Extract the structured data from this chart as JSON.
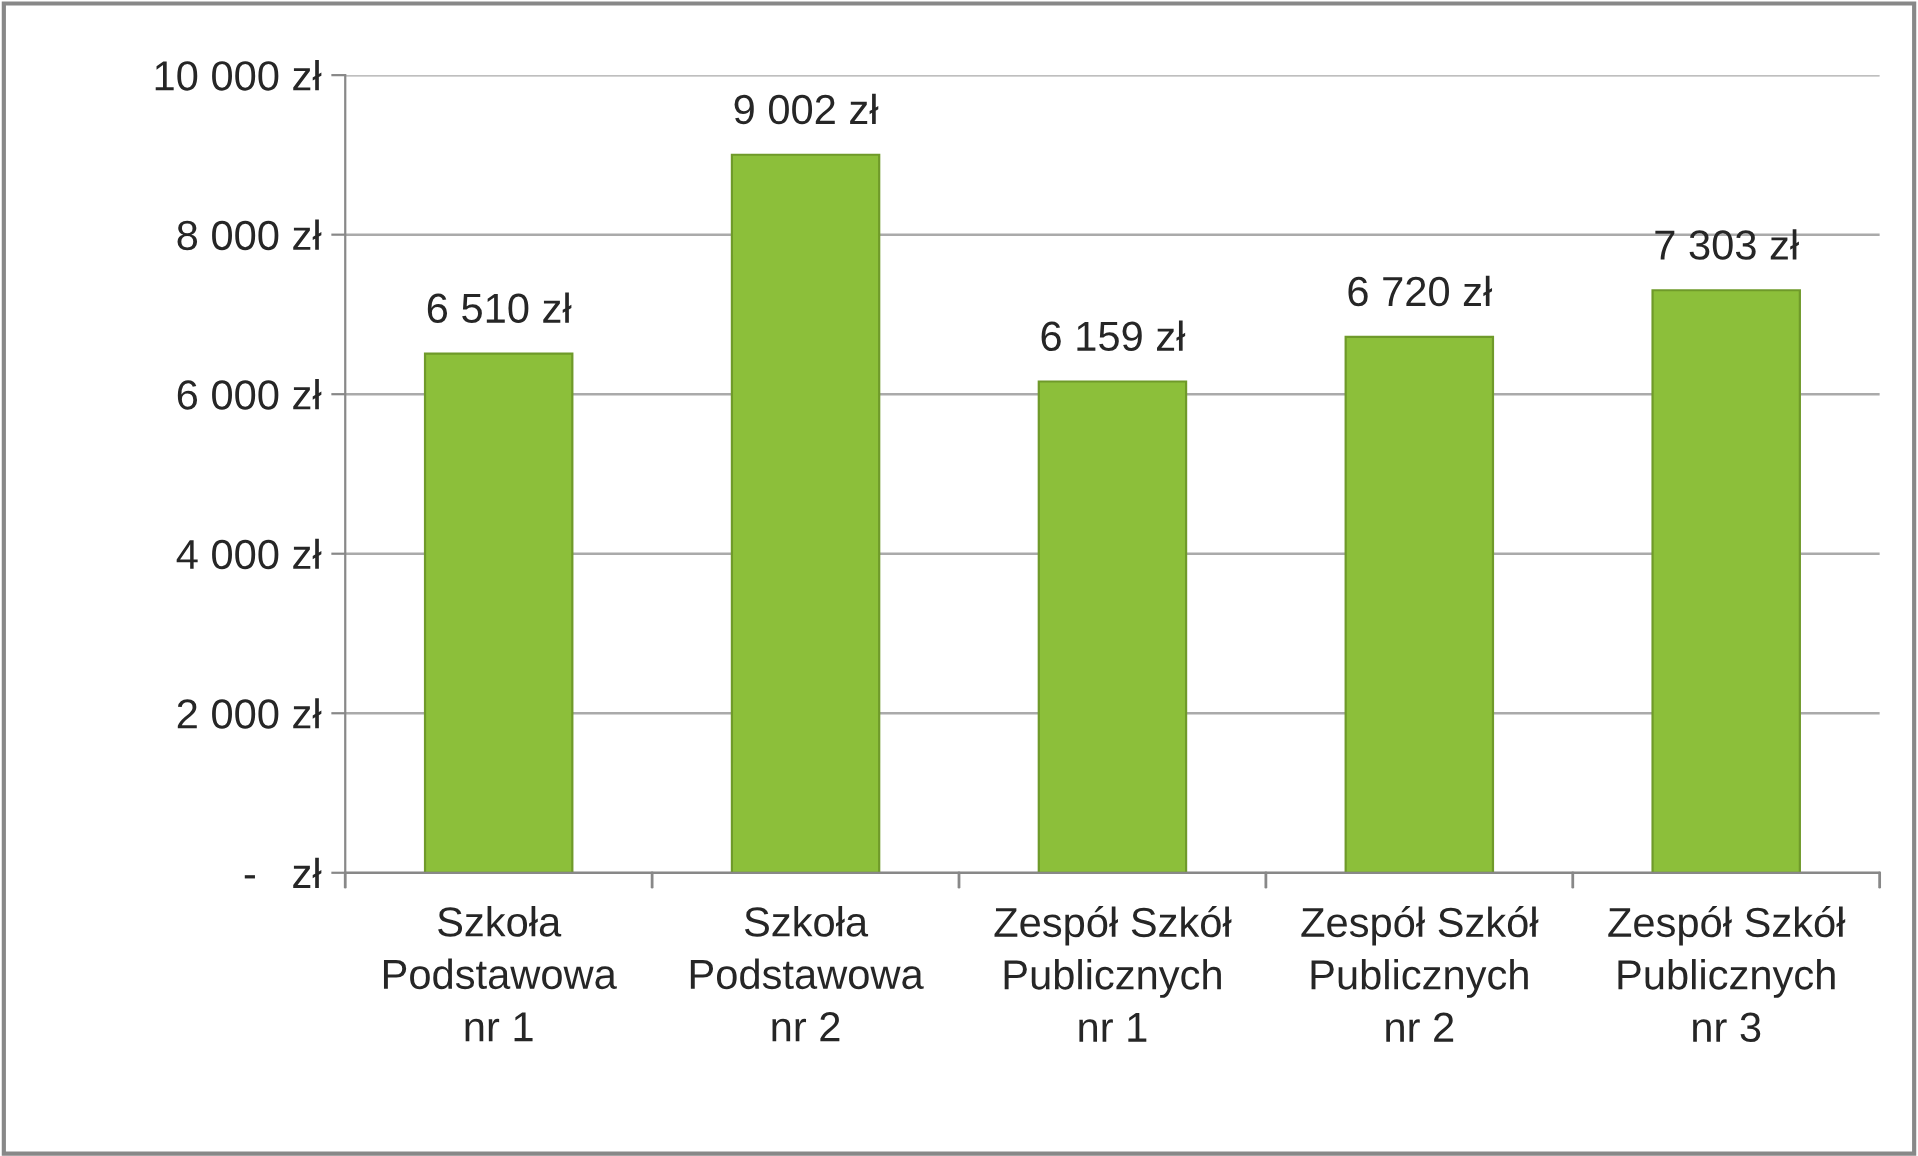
{
  "chart_data": {
    "type": "bar",
    "categories": [
      "Szkoła\nPodstawowa\nnr 1",
      "Szkoła\nPodstawowa\nnr 2",
      "Zespół Szkół\nPublicznych\nnr 1",
      "Zespół Szkół\nPublicznych\nnr 2",
      "Zespół Szkół\nPublicznych\nnr 3"
    ],
    "values": [
      6510,
      9002,
      6159,
      6720,
      7303
    ],
    "value_labels": [
      "6 510 zł",
      "9 002 zł",
      "6 159 zł",
      "6 720 zł",
      "7 303 zł"
    ],
    "color": "#8cbf3a",
    "ylim": [
      0,
      10000
    ],
    "yticks": [
      {
        "value": 0,
        "label": "-   zł"
      },
      {
        "value": 2000,
        "label": "2 000 zł"
      },
      {
        "value": 4000,
        "label": "4 000 zł"
      },
      {
        "value": 6000,
        "label": "6 000 zł"
      },
      {
        "value": 8000,
        "label": "8 000 zł"
      },
      {
        "value": 10000,
        "label": "10 000 zł"
      }
    ],
    "grid": "y"
  }
}
